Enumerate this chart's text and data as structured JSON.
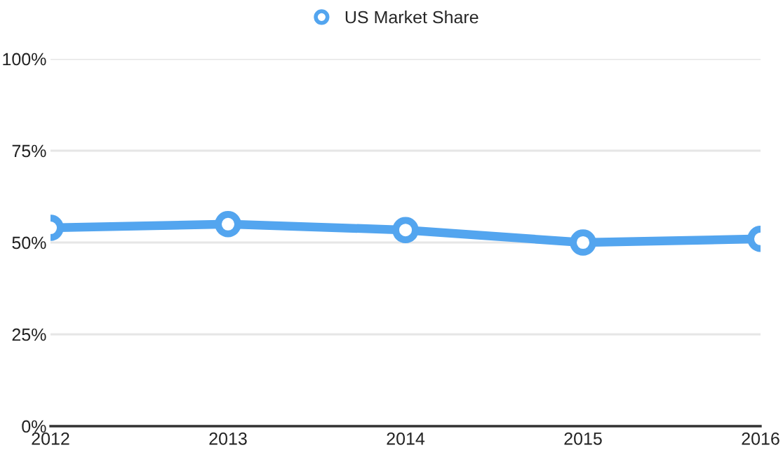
{
  "chart_data": {
    "type": "line",
    "categories": [
      "2012",
      "2013",
      "2014",
      "2015",
      "2016"
    ],
    "series": [
      {
        "name": "US Market Share",
        "color": "#53a5ef",
        "values": [
          54,
          55,
          53.4,
          50,
          51
        ]
      }
    ],
    "ylim": [
      0,
      100
    ],
    "yticks": [
      {
        "value": 0,
        "label": "0%"
      },
      {
        "value": 25,
        "label": "25%"
      },
      {
        "value": 50,
        "label": "50%"
      },
      {
        "value": 75,
        "label": "75%"
      },
      {
        "value": 100,
        "label": "100%"
      }
    ],
    "grid": "y",
    "legend": "top",
    "marker": "circle",
    "line_style": "solid"
  }
}
